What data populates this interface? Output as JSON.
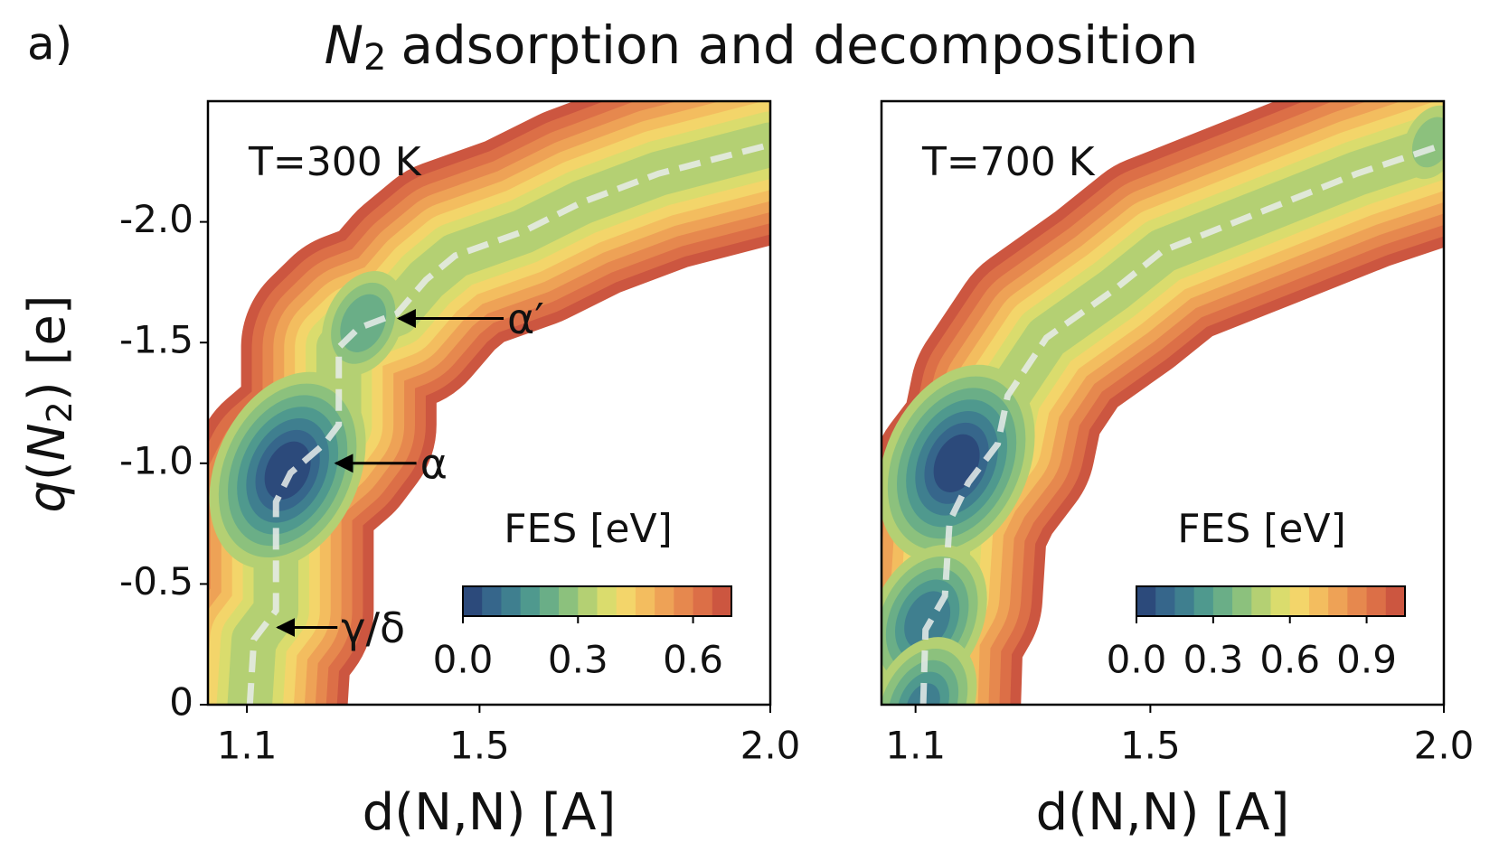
{
  "figure": {
    "label": "a)",
    "title": {
      "symbol": "N",
      "subscript": "2",
      "text": "adsorption and decomposition"
    },
    "ylabel": {
      "symbol": "q",
      "open": "(",
      "species": "N",
      "subscript": "2",
      "close": ") [e]"
    }
  },
  "chart_data": [
    {
      "type": "contour",
      "panel_text": "T=300 K",
      "xlabel": "d(N,N) [A]",
      "xlim": [
        1.033,
        2.0
      ],
      "ylim": [
        0,
        -2.5
      ],
      "xticks": [
        1.1,
        1.5,
        {
          "value": 2.0,
          "label": "2.0"
        }
      ],
      "yticks": [
        0,
        -0.5,
        {
          "value": -1.0,
          "label": "-1.0"
        },
        -1.5,
        {
          "value": -2.0,
          "label": "-2.0"
        }
      ],
      "path_x": [
        1.105,
        1.112,
        1.15,
        1.15,
        1.175,
        1.233,
        1.258,
        1.258,
        1.292,
        1.358,
        1.408,
        1.458,
        1.575,
        1.675,
        1.808,
        2.0
      ],
      "path_y": [
        0,
        -0.27,
        -0.39,
        -0.84,
        -0.96,
        -1.08,
        -1.16,
        -1.48,
        -1.56,
        -1.62,
        -1.76,
        -1.86,
        -1.96,
        -2.08,
        -2.2,
        -2.32
      ],
      "minima": [
        {
          "x": 1.17,
          "y": -0.97,
          "fes": 0.0
        },
        {
          "x": 1.3,
          "y": -1.58,
          "fes": 0.2
        },
        {
          "x": 1.12,
          "y": -0.28,
          "fes": 0.3
        },
        {
          "x": 1.97,
          "y": -2.33,
          "fes": 0.35
        }
      ],
      "annotations": [
        {
          "text": "α′",
          "x": 1.358,
          "y": -1.6
        },
        {
          "text": "α",
          "x": 1.25,
          "y": -1.0
        },
        {
          "text": "γ/δ",
          "x": 1.15,
          "y": -0.32
        }
      ],
      "colorbar": {
        "label": "FES [eV]",
        "levels": [
          0,
          0.05,
          0.1,
          0.15,
          0.2,
          0.25,
          0.3,
          0.35,
          0.4,
          0.45,
          0.5,
          0.55,
          0.6,
          0.65,
          0.7
        ],
        "ticks": [
          {
            "value": 0,
            "label": "0.0"
          },
          0.3,
          0.6
        ]
      }
    },
    {
      "type": "contour",
      "panel_text": "T=700 K",
      "xlabel": "d(N,N) [A]",
      "xlim": [
        1.042,
        2.0
      ],
      "ylim": [
        0,
        -2.5
      ],
      "xticks": [
        1.1,
        1.5,
        {
          "value": 2.0,
          "label": "2.0"
        }
      ],
      "path_x": [
        1.113,
        1.117,
        1.15,
        1.158,
        1.19,
        1.24,
        1.257,
        1.323,
        1.439,
        1.521,
        1.687,
        1.852,
        2.0
      ],
      "path_y": [
        0,
        -0.31,
        -0.45,
        -0.76,
        -0.92,
        -1.08,
        -1.28,
        -1.52,
        -1.72,
        -1.88,
        -2.04,
        -2.2,
        -2.32
      ],
      "minima": [
        {
          "x": 1.17,
          "y": -1.0,
          "fes": 0.0
        },
        {
          "x": 1.12,
          "y": -0.35,
          "fes": 0.15
        },
        {
          "x": 1.113,
          "y": 0,
          "fes": 0.2
        },
        {
          "x": 1.98,
          "y": -2.33,
          "fes": 0.4
        }
      ],
      "colorbar": {
        "label": "FES [eV]",
        "levels": [
          0,
          0.075,
          0.15,
          0.225,
          0.3,
          0.375,
          0.45,
          0.525,
          0.6,
          0.675,
          0.75,
          0.825,
          0.9,
          0.975,
          1.05
        ],
        "ticks": [
          {
            "value": 0,
            "label": "0.0"
          },
          0.3,
          0.6,
          0.9
        ]
      }
    }
  ],
  "colors": [
    "#2c4a7b",
    "#36668b",
    "#3f7f8f",
    "#4f998e",
    "#6aae87",
    "#8cc17d",
    "#b4d073",
    "#dadc6d",
    "#f3d56a",
    "#f3bd5f",
    "#eea256",
    "#e6884e",
    "#dc6f47",
    "#cc5640"
  ]
}
